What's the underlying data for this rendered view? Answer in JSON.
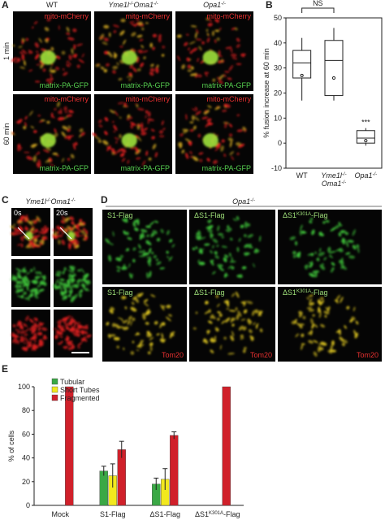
{
  "panel_labels": [
    "A",
    "B",
    "C",
    "D",
    "E"
  ],
  "panel_a": {
    "columns": [
      [
        "WT"
      ],
      [
        "Yme1l",
        "-/-",
        "Oma1",
        "-/-"
      ],
      [
        "Opa1",
        "-/-"
      ]
    ],
    "rows": [
      "1 min",
      "60 min"
    ],
    "image_labels": {
      "top": "mito-mCherry",
      "bottom": "matrix-PA-GFP"
    }
  },
  "panel_c": {
    "header": [
      "Yme1l",
      "-/-",
      "Oma1",
      "-/-"
    ],
    "times": [
      "0s",
      "20s"
    ]
  },
  "panel_d": {
    "header": [
      "Opa1",
      "-/-"
    ],
    "columns": [
      [
        "S1-Flag"
      ],
      [
        "ΔS1-Flag"
      ],
      [
        "ΔS1",
        "K301A",
        "-Flag"
      ]
    ],
    "marker": "Tom20"
  },
  "chart_data": [
    {
      "type": "box",
      "y_label": "% fusion increase at 60 min",
      "categories": [
        [
          [
            "WT"
          ]
        ],
        [
          [
            "Yme1l",
            "-/-"
          ],
          [
            "Oma1",
            "-/-"
          ]
        ],
        [
          [
            "Opa1",
            "-/-"
          ]
        ]
      ],
      "whisker_low": [
        17,
        17,
        -1
      ],
      "q1": [
        26,
        19,
        0
      ],
      "median": [
        32,
        33,
        2
      ],
      "q3": [
        37,
        41,
        5
      ],
      "whisker_high": [
        42,
        46,
        6
      ],
      "mean": [
        27,
        26,
        1
      ],
      "significance": [
        "NS",
        "***"
      ],
      "ylim": [
        -10,
        50
      ],
      "yticks": [
        -10,
        0,
        10,
        20,
        30,
        40,
        50
      ]
    },
    {
      "type": "bar",
      "y_label": "% of cells",
      "categories": [
        [
          "Mock"
        ],
        [
          "S1-Flag"
        ],
        [
          "ΔS1-Flag"
        ],
        [
          "ΔS1",
          "K301A",
          "-Flag"
        ]
      ],
      "series": [
        {
          "name": "Tubular",
          "color": "#3aa845",
          "values": [
            0,
            29,
            18,
            0
          ],
          "errors": [
            0,
            4,
            5,
            0
          ]
        },
        {
          "name": "Short Tubes",
          "color": "#f2e81e",
          "values": [
            0,
            25,
            22,
            0
          ],
          "errors": [
            0,
            10,
            9,
            0
          ]
        },
        {
          "name": "Fragmented",
          "color": "#d0202a",
          "values": [
            100,
            47,
            59,
            100
          ],
          "errors": [
            0,
            7,
            3,
            0
          ]
        }
      ],
      "legend": "top-left",
      "ylim": [
        0,
        100
      ],
      "yticks": [
        0,
        20,
        40,
        60,
        80,
        100
      ]
    }
  ]
}
